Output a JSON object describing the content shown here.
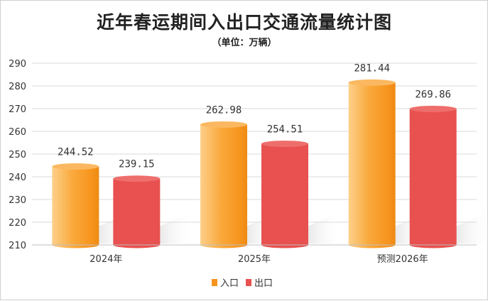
{
  "chart_data": {
    "type": "bar",
    "title": "近年春运期间入出口交通流量统计图",
    "subtitle": "（单位：万辆）",
    "categories": [
      "2024年",
      "2025年",
      "预测2026年"
    ],
    "series": [
      {
        "name": "入口",
        "values": [
          244.52,
          262.98,
          281.44
        ],
        "color": "#F7941D"
      },
      {
        "name": "出口",
        "values": [
          239.15,
          254.51,
          269.86
        ],
        "color": "#E8514F"
      }
    ],
    "ylim": [
      210,
      290
    ],
    "yticks": [
      210,
      220,
      230,
      240,
      250,
      260,
      270,
      280,
      290
    ],
    "grid": true,
    "legend_position": "bottom-center"
  }
}
